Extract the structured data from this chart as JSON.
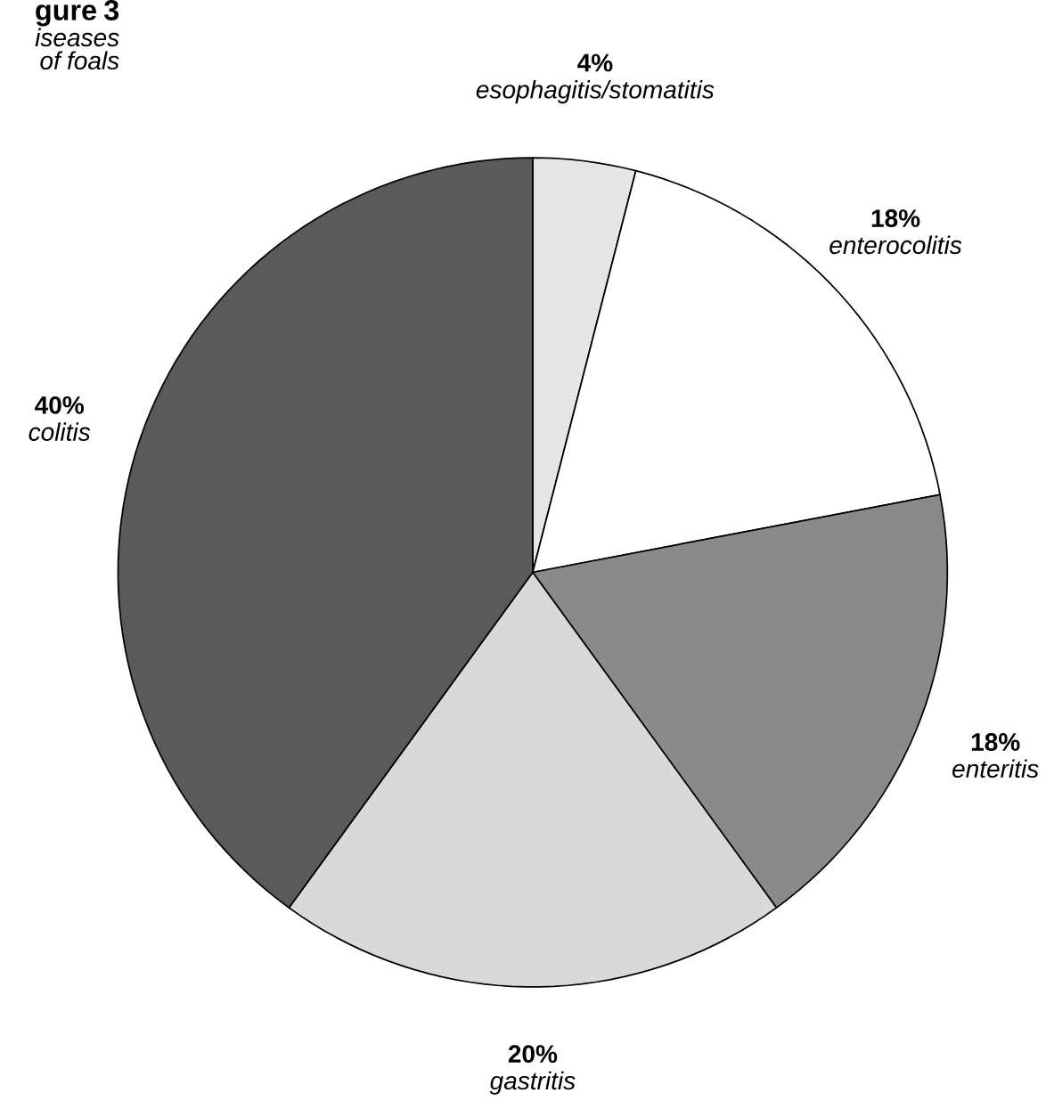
{
  "chart_data": {
    "type": "pie",
    "title": "gure 3",
    "subtitle": "iseases of foals",
    "categories": [
      "esophagitis/stomatitis",
      "enterocolitis",
      "enteritis",
      "gastritis",
      "colitis"
    ],
    "values": [
      4,
      18,
      18,
      20,
      40
    ],
    "value_labels": [
      "4%",
      "18%",
      "18%",
      "20%",
      "40%"
    ],
    "colors": [
      "#e6e6e6",
      "#ffffff",
      "#8a8a8a",
      "#d9d9d9",
      "#5a5a5a"
    ]
  }
}
